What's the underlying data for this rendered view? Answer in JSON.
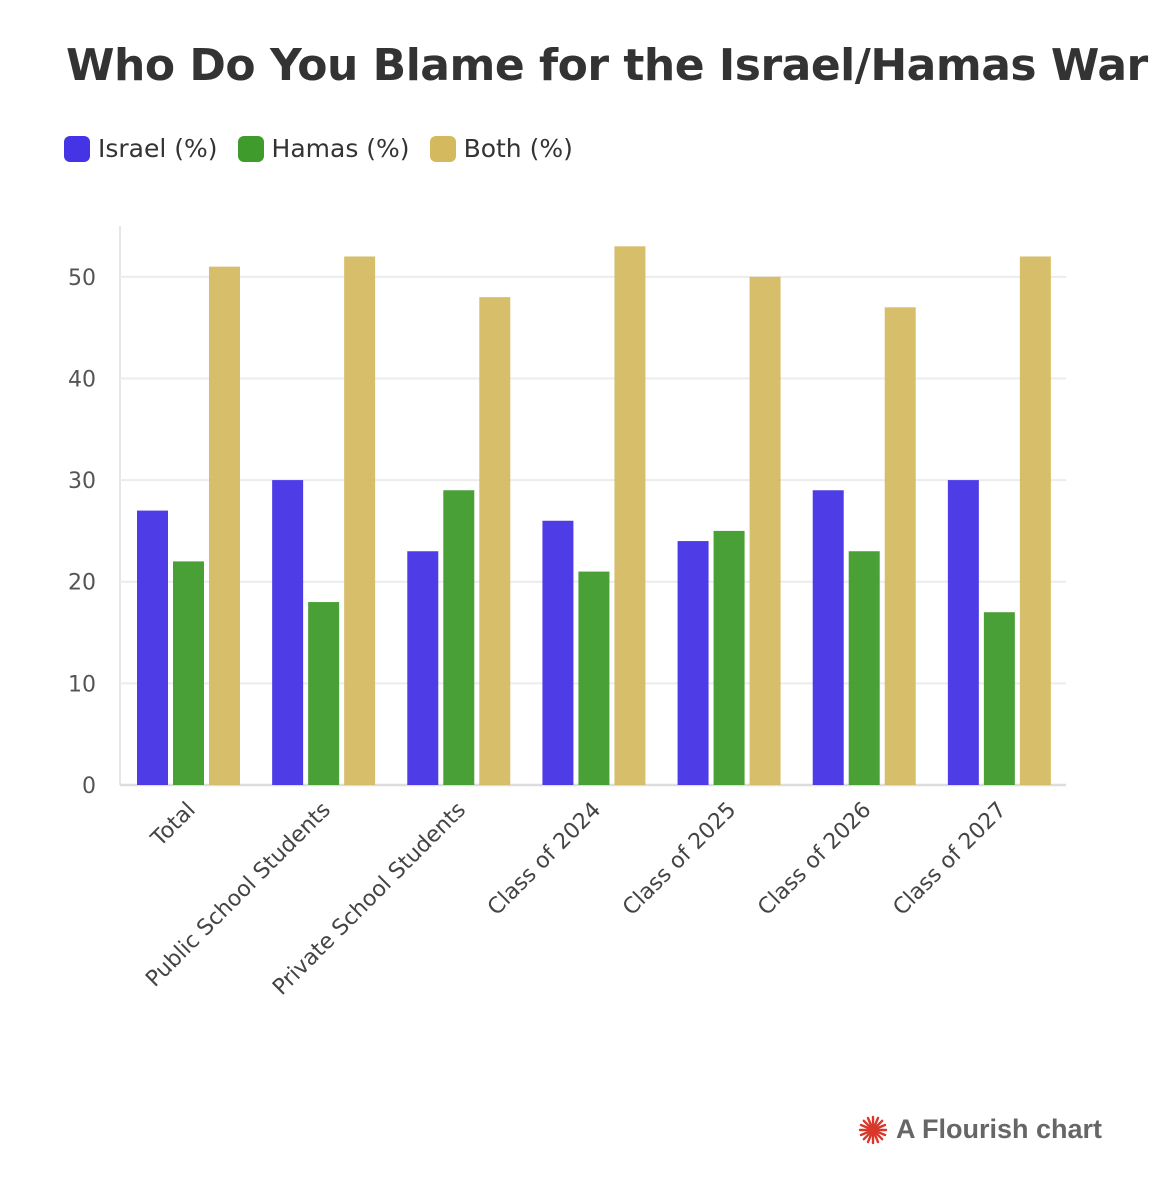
{
  "chart_data": {
    "type": "bar",
    "title": "Who Do You Blame for the Israel/Hamas War",
    "categories": [
      "Total",
      "Public School Students",
      "Private School Students",
      "Class of 2024",
      "Class of 2025",
      "Class of 2026",
      "Class of 2027"
    ],
    "series": [
      {
        "name": "Israel (%)",
        "color": "#4533e6",
        "values": [
          27,
          30,
          23,
          26,
          24,
          29,
          30
        ]
      },
      {
        "name": "Hamas (%)",
        "color": "#3f9b2c",
        "values": [
          22,
          18,
          29,
          21,
          25,
          23,
          17
        ]
      },
      {
        "name": "Both (%)",
        "color": "#d4b95e",
        "values": [
          51,
          52,
          48,
          53,
          50,
          47,
          52
        ]
      }
    ],
    "yticks": [
      0,
      10,
      20,
      30,
      40,
      50
    ],
    "ylim": [
      0,
      55
    ],
    "xlabel": "",
    "ylabel": "",
    "grid": true,
    "legend": "top-left"
  },
  "credit": {
    "text": "A Flourish chart",
    "icon": "flourish-logo-icon"
  }
}
